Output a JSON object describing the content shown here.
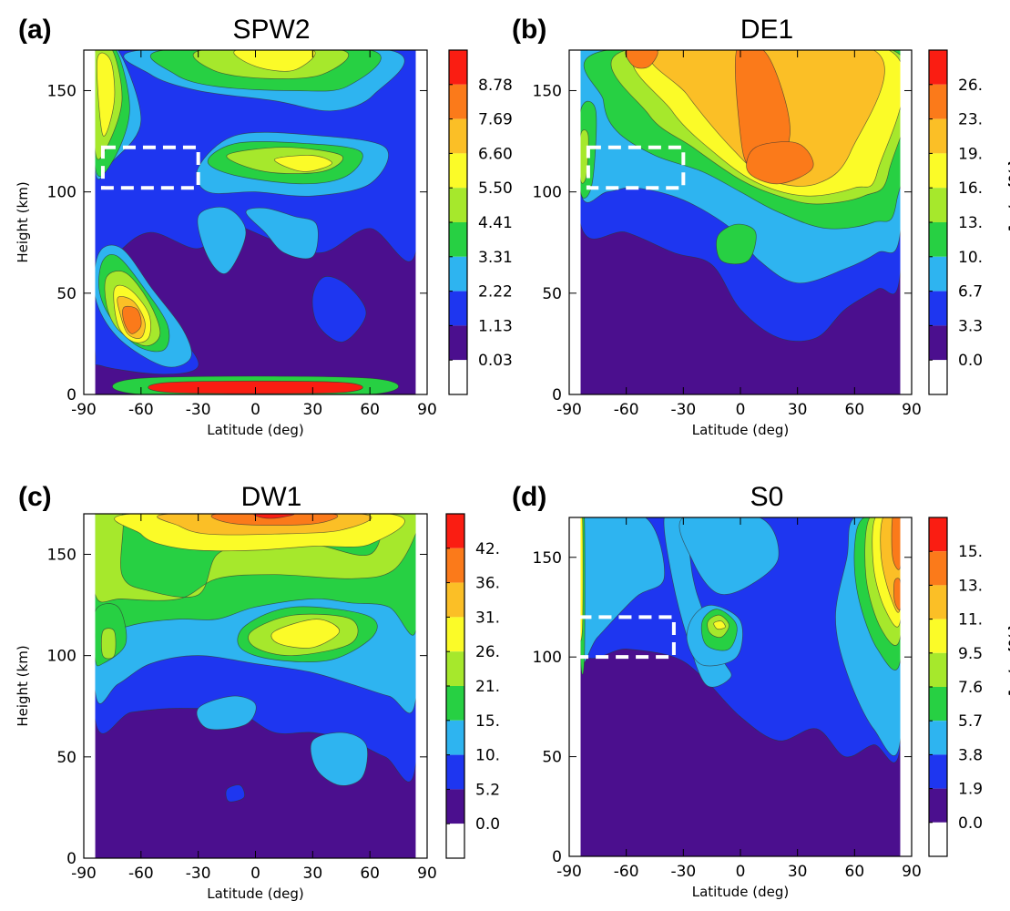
{
  "chart_data": [
    {
      "type": "heatmap",
      "panel_label": "(a)",
      "title": "SPW2",
      "xlabel": "Latitude (deg)",
      "ylabel": "Height (km)",
      "xlim": [
        -90,
        90
      ],
      "ylim": [
        0,
        170
      ],
      "x_ticks": [
        "-90",
        "-60",
        "-30",
        "0",
        "30",
        "60",
        "90"
      ],
      "y_ticks": [
        "0",
        "50",
        "100",
        "150"
      ],
      "colorbar_levels": [
        "8.78",
        "7.69",
        "6.60",
        "5.50",
        "4.41",
        "3.31",
        "2.22",
        "1.13",
        "0.03"
      ],
      "colorbar_unit": "",
      "highlight_box": {
        "lat": [
          -80,
          -30
        ],
        "height": [
          102,
          122
        ]
      },
      "features": [
        {
          "lat": -78,
          "height": 148,
          "level": 5
        },
        {
          "lat": 5,
          "height": 167,
          "level": 5
        },
        {
          "lat": 22,
          "height": 117,
          "level": 5
        },
        {
          "lat": -63,
          "height": 36,
          "level": 8
        },
        {
          "lat": -10,
          "height": 4,
          "level": 9
        }
      ]
    },
    {
      "type": "heatmap",
      "panel_label": "(b)",
      "title": "DE1",
      "xlabel": "Latitude (deg)",
      "ylabel": "",
      "xlim": [
        -90,
        90
      ],
      "ylim": [
        0,
        170
      ],
      "x_ticks": [
        "-90",
        "-60",
        "-30",
        "0",
        "30",
        "60",
        "90"
      ],
      "y_ticks": [
        "0",
        "50",
        "100",
        "150"
      ],
      "colorbar_levels": [
        "26.",
        "23.",
        "19.",
        "16.",
        "13.",
        "10.",
        "6.7",
        "3.3",
        "0.0"
      ],
      "colorbar_unit": "Δρ/ρ  (%)",
      "highlight_box": {
        "lat": [
          -80,
          -30
        ],
        "height": [
          102,
          122
        ]
      },
      "features": [
        {
          "lat": 20,
          "height": 118,
          "level": 8
        },
        {
          "lat": -50,
          "height": 167,
          "level": 8
        },
        {
          "lat": -85,
          "height": 120,
          "level": 5
        }
      ]
    },
    {
      "type": "heatmap",
      "panel_label": "(c)",
      "title": "DW1",
      "xlabel": "Latitude (deg)",
      "ylabel": "Height (km)",
      "xlim": [
        -90,
        90
      ],
      "ylim": [
        0,
        170
      ],
      "x_ticks": [
        "-90",
        "-60",
        "-30",
        "0",
        "30",
        "60",
        "90"
      ],
      "y_ticks": [
        "0",
        "50",
        "100",
        "150"
      ],
      "colorbar_levels": [
        "42.",
        "36.",
        "31.",
        "26.",
        "21.",
        "15.",
        "10.",
        "5.2",
        "0.0"
      ],
      "colorbar_unit": "",
      "highlight_box": null,
      "features": [
        {
          "lat": 10,
          "height": 167,
          "level": 8
        },
        {
          "lat": 20,
          "height": 111,
          "level": 6
        },
        {
          "lat": -85,
          "height": 105,
          "level": 5
        }
      ]
    },
    {
      "type": "heatmap",
      "panel_label": "(d)",
      "title": "S0",
      "xlabel": "Latitude (deg)",
      "ylabel": "",
      "xlim": [
        -90,
        90
      ],
      "ylim": [
        0,
        170
      ],
      "x_ticks": [
        "-90",
        "-60",
        "-30",
        "0",
        "30",
        "60",
        "90"
      ],
      "y_ticks": [
        "0",
        "50",
        "100",
        "150"
      ],
      "colorbar_levels": [
        "15.",
        "13.",
        "11.",
        "9.5",
        "7.6",
        "5.7",
        "3.8",
        "1.9",
        "0.0"
      ],
      "colorbar_unit": "Δρ/ρ  (%)",
      "highlight_box": {
        "lat": [
          -85,
          -35
        ],
        "height": [
          100,
          120
        ]
      },
      "features": [
        {
          "lat": -13,
          "height": 116,
          "level": 6
        },
        {
          "lat": 85,
          "height": 150,
          "level": 8
        },
        {
          "lat": -87,
          "height": 140,
          "level": 7
        }
      ]
    }
  ],
  "colors": {
    "levels": [
      "#ffffff",
      "#4b0f8e",
      "#1e36f0",
      "#2eb4f0",
      "#27d043",
      "#a6e82c",
      "#fbfb28",
      "#fbbf26",
      "#fb7a1a",
      "#fa1d12"
    ],
    "box": "#ffffff",
    "contour_line": "#333333"
  }
}
